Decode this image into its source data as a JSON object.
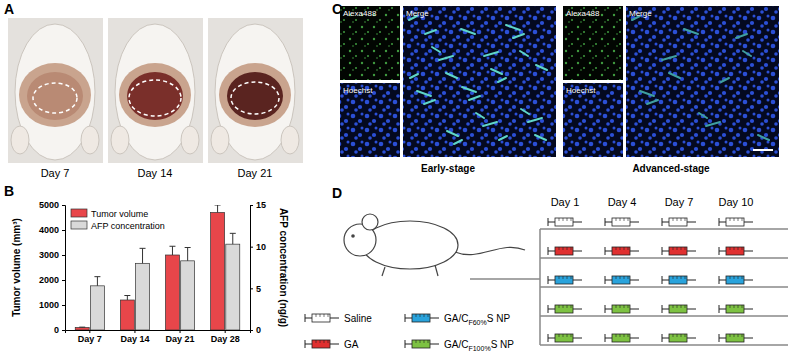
{
  "chart_data": {
    "type": "bar",
    "categories": [
      "Day 7",
      "Day 14",
      "Day 21",
      "Day 28"
    ],
    "series": [
      {
        "name": "Tumor volume",
        "color": "#e8464a",
        "values": [
          100,
          1200,
          3000,
          4700
        ],
        "errors": [
          15,
          180,
          350,
          300
        ]
      },
      {
        "name": "AFP concentration",
        "color": "#d9d9d9",
        "values": [
          5.3,
          8,
          8.3,
          10.3
        ],
        "errors": [
          1.1,
          1.8,
          1.6,
          1.3
        ],
        "axis": "y2"
      }
    ],
    "y_label": "Tumor volume (mm³)",
    "y2_label": "AFP concentration (ng/g)",
    "ylim": [
      0,
      5000
    ],
    "yticks": [
      0,
      1000,
      2000,
      3000,
      4000,
      5000
    ],
    "y2lim": [
      0,
      15
    ],
    "y2ticks": [
      0,
      5,
      10,
      15
    ],
    "legend": "upper left"
  },
  "panels": {
    "A": {
      "label": "A",
      "captions": [
        "Day 7",
        "Day 14",
        "Day 21"
      ]
    },
    "B": {
      "label": "B"
    },
    "C": {
      "label": "C",
      "captions": [
        "Early-stage",
        "Advanced-stage"
      ],
      "channels": [
        "Alexa488",
        "Hoechst",
        "Merge"
      ]
    },
    "D": {
      "label": "D",
      "days": [
        "Day 1",
        "Day 4",
        "Day 7",
        "Day 10"
      ],
      "groups": [
        {
          "label": [
            "Saline"
          ],
          "color": "#ffffff"
        },
        {
          "label": [
            "GA"
          ],
          "color": "#e03030"
        },
        {
          "label": [
            "GA/C",
            "F60%",
            "S NP"
          ],
          "color": "#29a3dc"
        },
        {
          "label": [
            "GA/C",
            "F100%",
            "S NP"
          ],
          "color": "#7dc242"
        }
      ],
      "rows": [
        "#ffffff",
        "#e03030",
        "#29a3dc",
        "#7dc242",
        "#7dc242"
      ]
    }
  }
}
